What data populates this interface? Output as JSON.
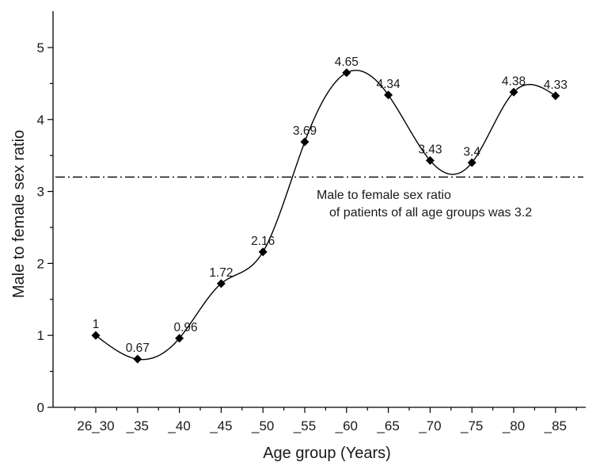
{
  "chart_data": {
    "type": "scatter",
    "xlabel": "Age group (Years)",
    "ylabel": "Male to female sex ratio",
    "categories": [
      "26_30",
      "_35",
      "_40",
      "_45",
      "_50",
      "_55",
      "_60",
      "_65",
      "_70",
      "_75",
      "_80",
      "_85"
    ],
    "values": [
      1,
      0.67,
      0.96,
      1.72,
      2.16,
      3.69,
      4.65,
      4.34,
      3.43,
      3.4,
      4.38,
      4.33
    ],
    "data_labels": [
      "1",
      "0.67",
      "0.96",
      "1.72",
      "2.16",
      "3.69",
      "4.65",
      "4.34",
      "3.43",
      "3.4",
      "4.38",
      "4.33"
    ],
    "ylim": [
      0,
      5.45
    ],
    "yticks": [
      0,
      1,
      2,
      3,
      4,
      5
    ],
    "marker": "diamond",
    "smooth_curve": true,
    "reference_line": {
      "y": 3.2,
      "style": "dash-dot",
      "annotation": [
        "Male to female sex ratio",
        "of patients of all age groups was 3.2"
      ]
    },
    "grid": false,
    "colors": {
      "marker": "#000000",
      "line": "#000000",
      "text": "#1a1a1a"
    }
  }
}
